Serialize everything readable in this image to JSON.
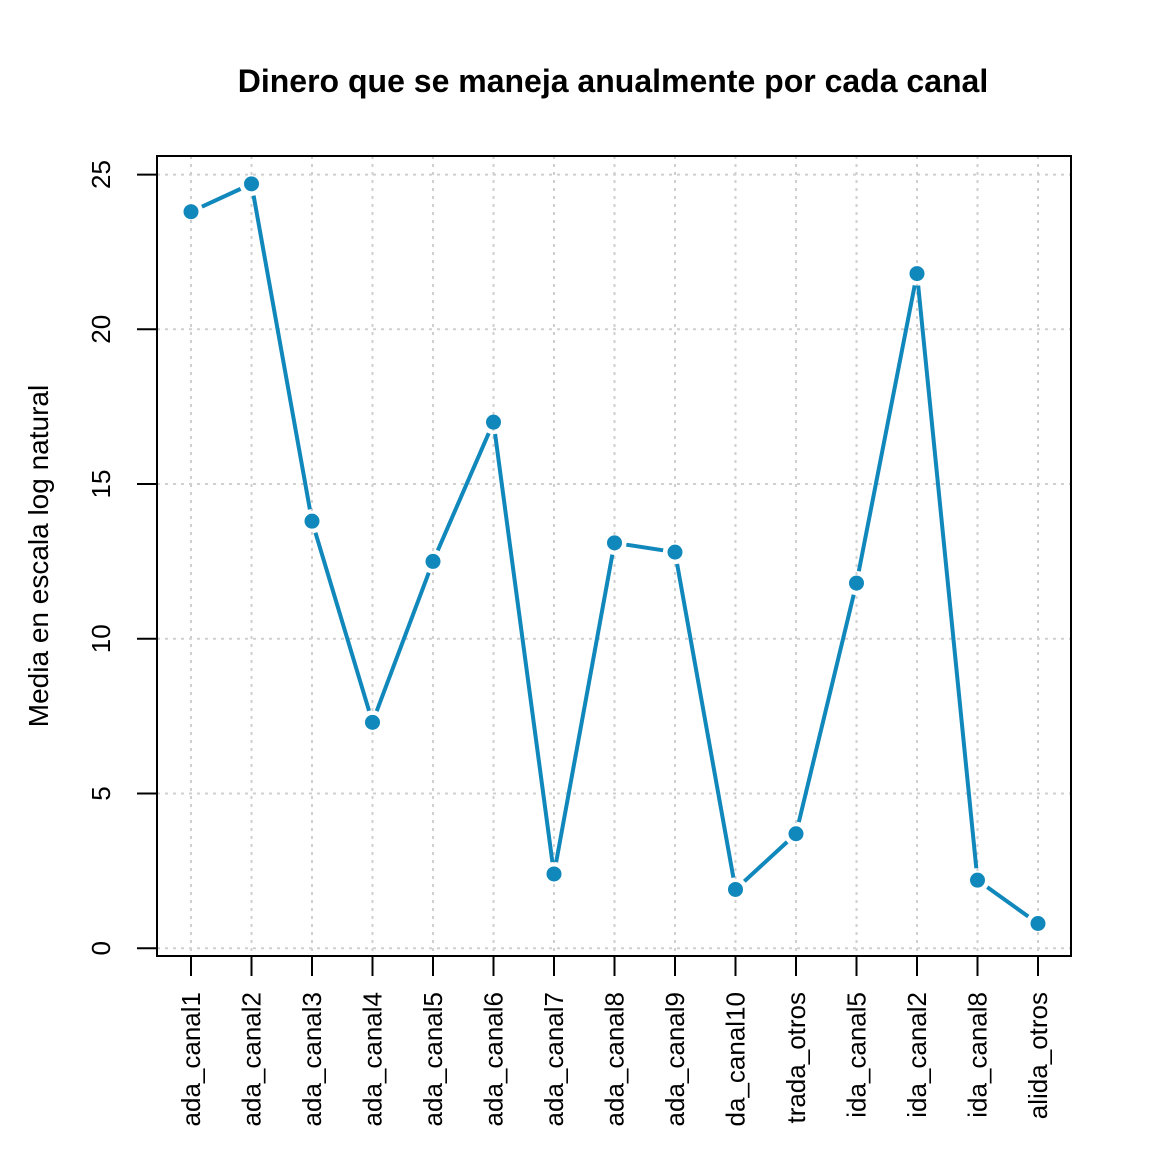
{
  "chart_data": {
    "type": "line",
    "title": "Dinero que se maneja anualmente por cada canal",
    "xlabel": "",
    "ylabel": "Media en escala log natural",
    "ylim": [
      -0.25,
      25.6
    ],
    "yticks": [
      0,
      5,
      10,
      15,
      20,
      25
    ],
    "grid": true,
    "line_color": "#1188BB",
    "categories": [
      "ada_canal1",
      "ada_canal2",
      "ada_canal3",
      "ada_canal4",
      "ada_canal5",
      "ada_canal6",
      "ada_canal7",
      "ada_canal8",
      "ada_canal9",
      "da_canal10",
      "trada_otros",
      "ida_canal5",
      "ida_canal2",
      "ida_canal8",
      "alida_otros"
    ],
    "values": [
      23.8,
      24.7,
      13.8,
      7.3,
      12.5,
      17.0,
      2.4,
      13.1,
      12.8,
      1.9,
      3.7,
      11.8,
      21.8,
      2.2,
      0.8
    ]
  }
}
